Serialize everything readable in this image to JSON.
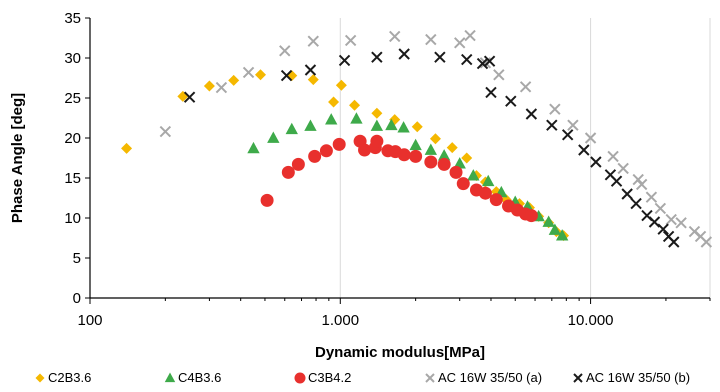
{
  "chart_data": {
    "type": "scatter",
    "xlabel": "Dynamic modulus[MPa]",
    "ylabel": "Phase Angle [deg]",
    "x_scale": "log",
    "xlim": [
      100,
      30000
    ],
    "ylim": [
      0,
      35
    ],
    "x_ticks": [
      100,
      1000,
      10000
    ],
    "x_tick_labels": [
      "100",
      "1.000",
      "10.000"
    ],
    "y_ticks": [
      0,
      5,
      10,
      15,
      20,
      25,
      30,
      35
    ],
    "grid": "vertical-major",
    "legend_position": "bottom",
    "series": [
      {
        "name": "C2B3.6",
        "marker": "diamond",
        "color": "#F5B800",
        "points": [
          [
            140,
            18.7
          ],
          [
            235,
            25.2
          ],
          [
            300,
            26.5
          ],
          [
            375,
            27.2
          ],
          [
            480,
            27.9
          ],
          [
            640,
            27.8
          ],
          [
            780,
            27.3
          ],
          [
            940,
            24.5
          ],
          [
            1010,
            26.6
          ],
          [
            1140,
            24.1
          ],
          [
            1400,
            23.1
          ],
          [
            1650,
            22.3
          ],
          [
            2030,
            21.4
          ],
          [
            2400,
            19.9
          ],
          [
            2800,
            18.8
          ],
          [
            3200,
            17.5
          ],
          [
            3500,
            15.3
          ],
          [
            3800,
            14.5
          ],
          [
            4200,
            13.3
          ],
          [
            4600,
            12.3
          ],
          [
            5200,
            11.8
          ],
          [
            5700,
            11.3
          ],
          [
            6200,
            10.2
          ],
          [
            6800,
            9.4
          ],
          [
            7300,
            8.3
          ],
          [
            7800,
            7.8
          ]
        ]
      },
      {
        "name": "C4B3.6",
        "marker": "triangle",
        "color": "#3EAA4A",
        "points": [
          [
            450,
            18.7
          ],
          [
            540,
            20.0
          ],
          [
            640,
            21.1
          ],
          [
            760,
            21.5
          ],
          [
            920,
            22.3
          ],
          [
            1160,
            22.4
          ],
          [
            1400,
            21.5
          ],
          [
            1600,
            21.6
          ],
          [
            1790,
            21.3
          ],
          [
            2000,
            19.1
          ],
          [
            2300,
            18.5
          ],
          [
            2600,
            17.8
          ],
          [
            3000,
            16.8
          ],
          [
            3400,
            15.3
          ],
          [
            3900,
            14.6
          ],
          [
            4400,
            13.2
          ],
          [
            5000,
            12.0
          ],
          [
            5600,
            11.4
          ],
          [
            6200,
            10.2
          ],
          [
            6800,
            9.5
          ],
          [
            7200,
            8.5
          ],
          [
            7700,
            7.8
          ]
        ]
      },
      {
        "name": "C3B4.2",
        "marker": "circle",
        "color": "#E8302D",
        "points": [
          [
            510,
            12.2
          ],
          [
            620,
            15.7
          ],
          [
            680,
            16.7
          ],
          [
            790,
            17.7
          ],
          [
            880,
            18.4
          ],
          [
            990,
            19.2
          ],
          [
            1200,
            19.6
          ],
          [
            1250,
            18.5
          ],
          [
            1380,
            18.8
          ],
          [
            1400,
            19.6
          ],
          [
            1550,
            18.4
          ],
          [
            1660,
            18.3
          ],
          [
            1800,
            17.9
          ],
          [
            2000,
            17.7
          ],
          [
            2300,
            17.0
          ],
          [
            2600,
            16.7
          ],
          [
            2900,
            15.7
          ],
          [
            3100,
            14.3
          ],
          [
            3500,
            13.5
          ],
          [
            3800,
            13.1
          ],
          [
            4200,
            12.3
          ],
          [
            4700,
            11.5
          ],
          [
            5100,
            11.0
          ],
          [
            5500,
            10.5
          ],
          [
            5800,
            10.3
          ]
        ]
      },
      {
        "name": "AC 16W 35/50 (a)",
        "marker": "x",
        "color": "#A8A8A8",
        "points": [
          [
            200,
            20.8
          ],
          [
            335,
            26.3
          ],
          [
            430,
            28.2
          ],
          [
            600,
            30.9
          ],
          [
            780,
            32.1
          ],
          [
            1100,
            32.2
          ],
          [
            1650,
            32.7
          ],
          [
            2300,
            32.3
          ],
          [
            3000,
            31.9
          ],
          [
            3300,
            32.8
          ],
          [
            3800,
            29.4
          ],
          [
            4300,
            27.9
          ],
          [
            5500,
            26.4
          ],
          [
            7200,
            23.6
          ],
          [
            8500,
            21.6
          ],
          [
            10000,
            20.0
          ],
          [
            12300,
            17.7
          ],
          [
            13500,
            16.2
          ],
          [
            15500,
            14.8
          ],
          [
            16000,
            14.2
          ],
          [
            17500,
            12.6
          ],
          [
            19000,
            11.2
          ],
          [
            21000,
            9.8
          ],
          [
            23000,
            9.4
          ],
          [
            26000,
            8.3
          ],
          [
            27500,
            7.7
          ],
          [
            29000,
            7.0
          ]
        ]
      },
      {
        "name": "AC 16W 35/50 (b)",
        "marker": "x",
        "color": "#1A1A1A",
        "points": [
          [
            250,
            25.1
          ],
          [
            610,
            27.8
          ],
          [
            760,
            28.5
          ],
          [
            1040,
            29.7
          ],
          [
            1400,
            30.1
          ],
          [
            1800,
            30.5
          ],
          [
            2500,
            30.1
          ],
          [
            3200,
            29.8
          ],
          [
            3700,
            29.3
          ],
          [
            3950,
            29.6
          ],
          [
            4000,
            25.7
          ],
          [
            4800,
            24.6
          ],
          [
            5800,
            23.0
          ],
          [
            7000,
            21.6
          ],
          [
            8100,
            20.4
          ],
          [
            9400,
            18.5
          ],
          [
            10500,
            17.0
          ],
          [
            12000,
            15.4
          ],
          [
            12700,
            14.6
          ],
          [
            14000,
            13.0
          ],
          [
            15200,
            11.8
          ],
          [
            16800,
            10.3
          ],
          [
            18000,
            9.5
          ],
          [
            19500,
            8.6
          ],
          [
            20500,
            7.7
          ],
          [
            21500,
            7.0
          ]
        ]
      }
    ]
  }
}
